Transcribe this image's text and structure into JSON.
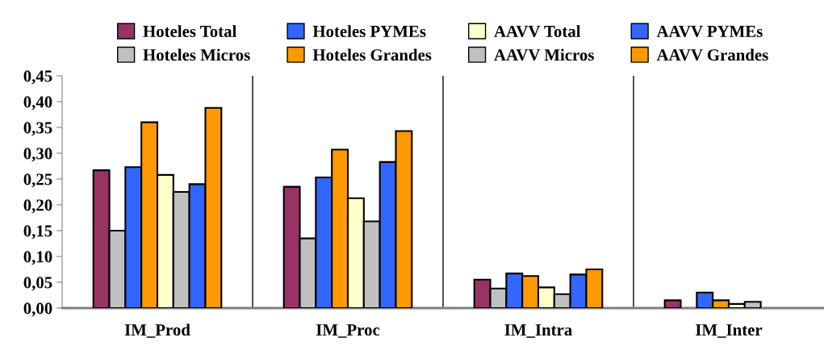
{
  "chart_data": {
    "type": "bar",
    "categories": [
      "IM_Prod",
      "IM_Proc",
      "IM_Intra",
      "IM_Inter"
    ],
    "series": [
      {
        "name": "Hoteles Total",
        "color": "#993366",
        "values": [
          0.267,
          0.235,
          0.055,
          0.015
        ]
      },
      {
        "name": "Hoteles Micros",
        "color": "#c0c0c0",
        "values": [
          0.15,
          0.135,
          0.038,
          null
        ]
      },
      {
        "name": "Hoteles PYMEs",
        "color": "#3366ff",
        "values": [
          0.273,
          0.253,
          0.067,
          0.03
        ]
      },
      {
        "name": "Hoteles Grandes",
        "color": "#ff9900",
        "values": [
          0.36,
          0.307,
          0.062,
          0.015
        ]
      },
      {
        "name": "AAVV Total",
        "color": "#ffffcc",
        "values": [
          0.258,
          0.213,
          0.04,
          0.008
        ]
      },
      {
        "name": "AAVV Micros",
        "color": "#c0c0c0",
        "values": [
          0.225,
          0.168,
          0.027,
          0.012
        ]
      },
      {
        "name": "AAVV PYMEs",
        "color": "#3366ff",
        "values": [
          0.24,
          0.283,
          0.065,
          null
        ]
      },
      {
        "name": "AAVV Grandes",
        "color": "#ff9900",
        "values": [
          0.388,
          0.343,
          0.075,
          null
        ]
      }
    ],
    "ylim": [
      0,
      0.45
    ],
    "yticks": [
      {
        "value": 0,
        "label": "0,00"
      },
      {
        "value": 0.05,
        "label": "0,05"
      },
      {
        "value": 0.1,
        "label": "0,10"
      },
      {
        "value": 0.15,
        "label": "0,15"
      },
      {
        "value": 0.2,
        "label": "0,20"
      },
      {
        "value": 0.25,
        "label": "0,25"
      },
      {
        "value": 0.3,
        "label": "0,30"
      },
      {
        "value": 0.35,
        "label": "0,35"
      },
      {
        "value": 0.4,
        "label": "0,40"
      },
      {
        "value": 0.45,
        "label": "0,45"
      }
    ],
    "grid": "x",
    "legend": "top"
  }
}
